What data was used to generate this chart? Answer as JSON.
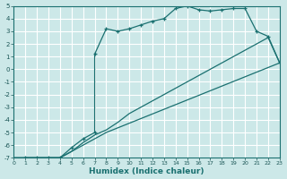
{
  "xlabel": "Humidex (Indice chaleur)",
  "background_color": "#cce8e8",
  "grid_color": "#ffffff",
  "line_color": "#1a7070",
  "xlim": [
    0,
    23
  ],
  "ylim": [
    -7,
    5
  ],
  "xticks": [
    0,
    1,
    2,
    3,
    4,
    5,
    6,
    7,
    8,
    9,
    10,
    11,
    12,
    13,
    14,
    15,
    16,
    17,
    18,
    19,
    20,
    21,
    22,
    23
  ],
  "yticks": [
    -7,
    -6,
    -5,
    -4,
    -3,
    -2,
    -1,
    0,
    1,
    2,
    3,
    4,
    5
  ],
  "line1_x": [
    0,
    1,
    3,
    4,
    5,
    6,
    7,
    8,
    23
  ],
  "line1_y": [
    -7,
    -7,
    -7,
    -7,
    -6.5,
    -6.0,
    -5.5,
    -5.0,
    0.5
  ],
  "line2_x": [
    0,
    1,
    3,
    4,
    5,
    6,
    7,
    8,
    9,
    10,
    11,
    12,
    13,
    14,
    15,
    16,
    17,
    18,
    19,
    20,
    21,
    22,
    23
  ],
  "line2_y": [
    -7,
    -7,
    -7,
    -7,
    -6.5,
    -5.8,
    -5.2,
    -4.8,
    -4.2,
    -3.5,
    -3.0,
    -2.5,
    -2.0,
    -1.5,
    -1.0,
    -0.5,
    0.0,
    0.5,
    1.0,
    1.5,
    2.0,
    2.5,
    0.5
  ],
  "line3_x": [
    1,
    2,
    3,
    4,
    5,
    6,
    7,
    7,
    8,
    9,
    10,
    11,
    12,
    13,
    14,
    15,
    16,
    17,
    18,
    19,
    20,
    21,
    22,
    23
  ],
  "line3_y": [
    -7,
    -7,
    -7,
    -7,
    -6.2,
    -5.5,
    -5.0,
    1.2,
    3.2,
    3.0,
    3.2,
    3.5,
    3.8,
    4.0,
    4.8,
    5.0,
    4.7,
    4.6,
    4.7,
    4.8,
    4.8,
    3.0,
    2.6,
    0.5
  ]
}
